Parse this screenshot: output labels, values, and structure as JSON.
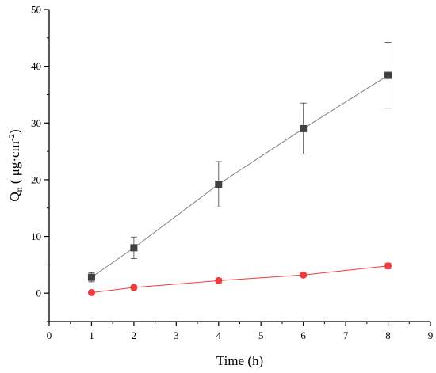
{
  "chart_data": {
    "type": "line",
    "xlabel": "Time (h)",
    "ylabel": {
      "base": "Q",
      "sub": "n",
      "unit_open": " ( μg·cm",
      "sup": "-2",
      "unit_close": ")"
    },
    "xlim": [
      0,
      9
    ],
    "ylim": [
      -5,
      50
    ],
    "xticks": [
      0,
      1,
      2,
      3,
      4,
      5,
      6,
      7,
      8,
      9
    ],
    "yticks": [
      0,
      10,
      20,
      30,
      40,
      50
    ],
    "grid": false,
    "series": [
      {
        "marker": "square",
        "color": "#404040",
        "line_color": "#7f7f7f",
        "x": [
          1,
          2,
          4,
          6,
          8
        ],
        "y": [
          2.8,
          8.0,
          19.2,
          29.0,
          38.4
        ],
        "error": [
          0.8,
          1.9,
          4.0,
          4.5,
          5.8
        ]
      },
      {
        "marker": "circle",
        "color": "#f03c3c",
        "line_color": "#f03c3c",
        "x": [
          1,
          2,
          4,
          6,
          8
        ],
        "y": [
          0.1,
          1.0,
          2.2,
          3.2,
          4.8
        ],
        "error": [
          0.2,
          0.3,
          0.4,
          0.3,
          0.5
        ]
      }
    ]
  }
}
